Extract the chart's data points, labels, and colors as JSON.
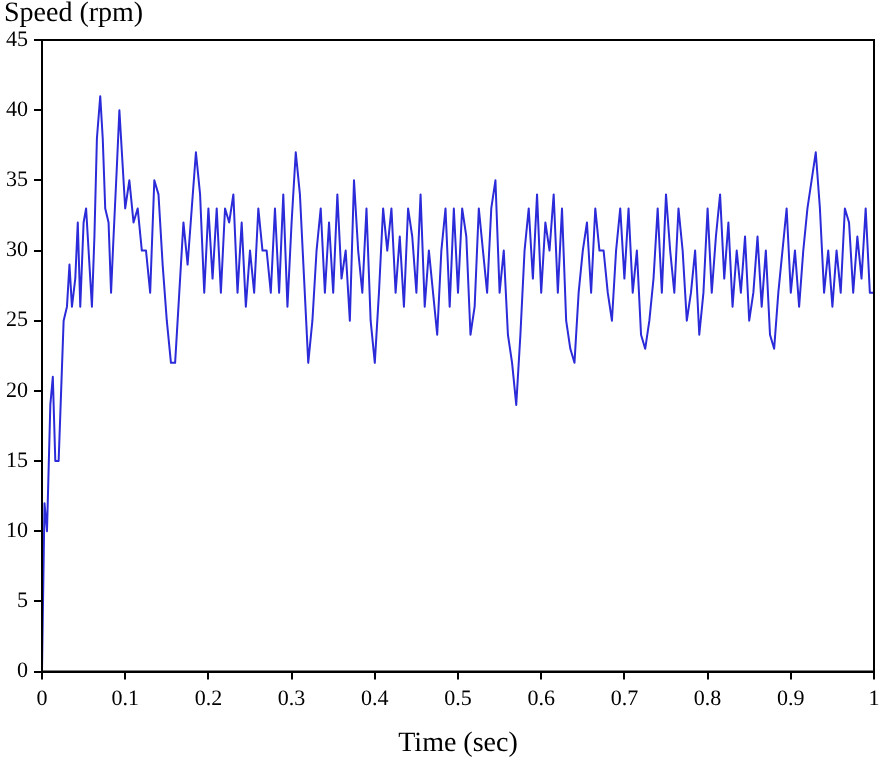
{
  "chart_data": {
    "type": "line",
    "xlabel": "Time (sec)",
    "ylabel": "Speed (rpm)",
    "x": [
      0,
      0.003,
      0.006,
      0.01,
      0.013,
      0.016,
      0.02,
      0.023,
      0.026,
      0.03,
      0.033,
      0.036,
      0.04,
      0.043,
      0.046,
      0.05,
      0.053,
      0.056,
      0.06,
      0.063,
      0.066,
      0.07,
      0.073,
      0.076,
      0.08,
      0.083,
      0.086,
      0.09,
      0.093,
      0.096,
      0.1,
      0.105,
      0.11,
      0.115,
      0.12,
      0.125,
      0.13,
      0.135,
      0.14,
      0.145,
      0.15,
      0.155,
      0.16,
      0.165,
      0.17,
      0.175,
      0.18,
      0.185,
      0.19,
      0.195,
      0.2,
      0.205,
      0.21,
      0.215,
      0.22,
      0.225,
      0.23,
      0.235,
      0.24,
      0.245,
      0.25,
      0.255,
      0.26,
      0.265,
      0.27,
      0.275,
      0.28,
      0.285,
      0.29,
      0.295,
      0.3,
      0.305,
      0.31,
      0.315,
      0.32,
      0.325,
      0.33,
      0.335,
      0.34,
      0.345,
      0.35,
      0.355,
      0.36,
      0.365,
      0.37,
      0.375,
      0.38,
      0.385,
      0.39,
      0.395,
      0.4,
      0.405,
      0.41,
      0.415,
      0.42,
      0.425,
      0.43,
      0.435,
      0.44,
      0.445,
      0.45,
      0.455,
      0.46,
      0.465,
      0.47,
      0.475,
      0.48,
      0.485,
      0.49,
      0.495,
      0.5,
      0.505,
      0.51,
      0.515,
      0.52,
      0.525,
      0.53,
      0.535,
      0.54,
      0.545,
      0.55,
      0.555,
      0.56,
      0.565,
      0.57,
      0.575,
      0.58,
      0.585,
      0.59,
      0.595,
      0.6,
      0.605,
      0.61,
      0.615,
      0.62,
      0.625,
      0.63,
      0.635,
      0.64,
      0.645,
      0.65,
      0.655,
      0.66,
      0.665,
      0.67,
      0.675,
      0.68,
      0.685,
      0.69,
      0.695,
      0.7,
      0.705,
      0.71,
      0.715,
      0.72,
      0.725,
      0.73,
      0.735,
      0.74,
      0.745,
      0.75,
      0.755,
      0.76,
      0.765,
      0.77,
      0.775,
      0.78,
      0.785,
      0.79,
      0.795,
      0.8,
      0.805,
      0.81,
      0.815,
      0.82,
      0.825,
      0.83,
      0.835,
      0.84,
      0.845,
      0.85,
      0.855,
      0.86,
      0.865,
      0.87,
      0.875,
      0.88,
      0.885,
      0.89,
      0.895,
      0.9,
      0.905,
      0.91,
      0.915,
      0.92,
      0.925,
      0.93,
      0.935,
      0.94,
      0.945,
      0.95,
      0.955,
      0.96,
      0.965,
      0.97,
      0.975,
      0.98,
      0.985,
      0.99,
      0.995,
      1
    ],
    "series": [
      {
        "color": "#2b2bd9",
        "values": [
          0,
          12,
          10,
          19,
          21,
          15,
          15,
          20,
          25,
          26,
          29,
          26,
          28,
          32,
          26,
          32,
          33,
          30,
          26,
          31,
          38,
          41,
          38,
          33,
          32,
          27,
          31,
          36,
          40,
          37,
          33,
          35,
          32,
          33,
          30,
          30,
          27,
          35,
          34,
          29,
          25,
          22,
          22,
          27,
          32,
          29,
          33,
          37,
          34,
          27,
          33,
          28,
          33,
          27,
          33,
          32,
          34,
          27,
          32,
          26,
          30,
          27,
          33,
          30,
          30,
          27,
          33,
          27,
          34,
          26,
          32,
          37,
          34,
          28,
          22,
          25,
          30,
          33,
          27,
          32,
          27,
          34,
          28,
          30,
          25,
          35,
          30,
          27,
          33,
          25,
          22,
          27,
          33,
          30,
          33,
          27,
          31,
          26,
          33,
          31,
          27,
          34,
          26,
          30,
          27,
          24,
          30,
          33,
          26,
          33,
          27,
          33,
          31,
          24,
          26,
          33,
          30,
          27,
          33,
          35,
          27,
          30,
          24,
          22,
          19,
          24,
          30,
          33,
          28,
          34,
          27,
          32,
          30,
          34,
          27,
          33,
          25,
          23,
          22,
          27,
          30,
          32,
          27,
          33,
          30,
          30,
          27,
          25,
          30,
          33,
          28,
          33,
          27,
          30,
          24,
          23,
          25,
          28,
          33,
          27,
          34,
          30,
          27,
          33,
          30,
          25,
          27,
          30,
          24,
          27,
          33,
          27,
          31,
          34,
          28,
          32,
          26,
          30,
          27,
          31,
          25,
          27,
          31,
          26,
          30,
          24,
          23,
          27,
          30,
          33,
          27,
          30,
          26,
          30,
          33,
          35,
          37,
          33,
          27,
          30,
          26,
          30,
          27,
          33,
          32,
          27,
          31,
          28,
          33,
          27,
          27
        ]
      }
    ],
    "xlim": [
      0,
      1
    ],
    "xticks": [
      0,
      0.1,
      0.2,
      0.3,
      0.4,
      0.5,
      0.6,
      0.7,
      0.8,
      0.9,
      1
    ],
    "ylim": [
      0,
      45
    ],
    "yticks": [
      0,
      5,
      10,
      15,
      20,
      25,
      30,
      35,
      40,
      45
    ],
    "grid": false,
    "legend": false,
    "marker": "none",
    "line_style": "solid"
  }
}
